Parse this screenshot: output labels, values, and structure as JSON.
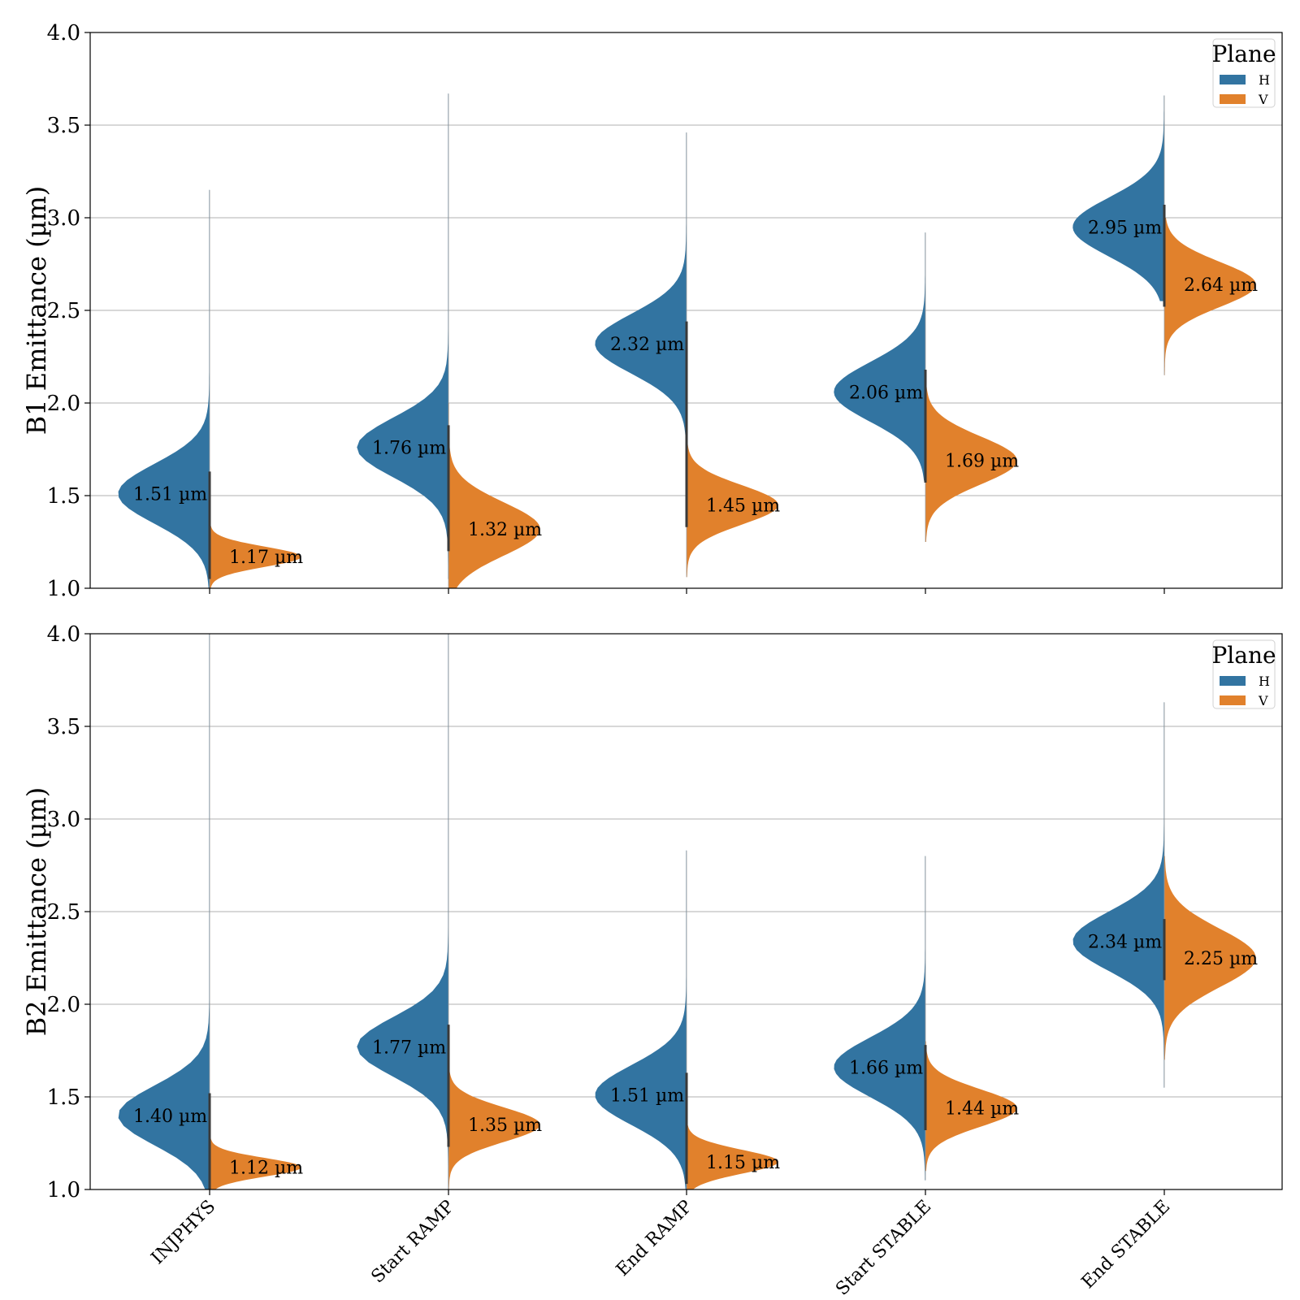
{
  "chart_data": [
    {
      "type": "violin",
      "ylabel": "B1 Emittance (µm)",
      "ylim": [
        1.0,
        4.0
      ],
      "yticks": [
        "1.0",
        "1.5",
        "2.0",
        "2.5",
        "3.0",
        "3.5",
        "4.0"
      ],
      "grid": "y",
      "legend": {
        "title": "Plane",
        "entries": [
          "H",
          "V"
        ],
        "placement": "top-right"
      },
      "categories": [
        "INJPHYS",
        "Start RAMP",
        "End RAMP",
        "Start STABLE",
        "End STABLE"
      ],
      "series": [
        {
          "name": "H",
          "color": "#3274a1",
          "medians": [
            1.51,
            1.76,
            2.32,
            2.06,
            2.95
          ],
          "labels": [
            "1.51 µm",
            "1.76 µm",
            "2.32 µm",
            "2.06 µm",
            "2.95 µm"
          ],
          "range": [
            [
              1.0,
              3.15
            ],
            [
              1.05,
              3.67
            ],
            [
              1.82,
              3.46
            ],
            [
              1.58,
              2.92
            ],
            [
              2.55,
              3.66
            ]
          ]
        },
        {
          "name": "V",
          "color": "#e1812c",
          "medians": [
            1.17,
            1.32,
            1.45,
            1.69,
            2.64
          ],
          "labels": [
            "1.17 µm",
            "1.32 µm",
            "1.45 µm",
            "1.69 µm",
            "2.64 µm"
          ],
          "range": [
            [
              1.0,
              1.38
            ],
            [
              1.0,
              2.0
            ],
            [
              1.06,
              1.8
            ],
            [
              1.25,
              2.15
            ],
            [
              2.15,
              3.0
            ]
          ]
        }
      ]
    },
    {
      "type": "violin",
      "ylabel": "B2 Emittance (µm)",
      "ylim": [
        1.0,
        4.0
      ],
      "yticks": [
        "1.0",
        "1.5",
        "2.0",
        "2.5",
        "3.0",
        "3.5",
        "4.0"
      ],
      "grid": "y",
      "legend": {
        "title": "Plane",
        "entries": [
          "H",
          "V"
        ],
        "placement": "top-right"
      },
      "categories": [
        "INJPHYS",
        "Start RAMP",
        "End RAMP",
        "Start STABLE",
        "End STABLE"
      ],
      "series": [
        {
          "name": "H",
          "color": "#3274a1",
          "medians": [
            1.4,
            1.77,
            1.51,
            1.66,
            2.34
          ],
          "labels": [
            "1.40 µm",
            "1.77 µm",
            "1.51 µm",
            "1.66 µm",
            "2.34 µm"
          ],
          "range": [
            [
              1.0,
              4.0
            ],
            [
              1.0,
              4.0
            ],
            [
              1.0,
              2.83
            ],
            [
              1.05,
              2.8
            ],
            [
              1.55,
              3.63
            ]
          ]
        },
        {
          "name": "V",
          "color": "#e1812c",
          "medians": [
            1.12,
            1.35,
            1.15,
            1.44,
            2.25
          ],
          "labels": [
            "1.12 µm",
            "1.35 µm",
            "1.15 µm",
            "1.44 µm",
            "2.25 µm"
          ],
          "range": [
            [
              1.0,
              1.32
            ],
            [
              1.0,
              1.65
            ],
            [
              1.0,
              1.45
            ],
            [
              1.1,
              1.8
            ],
            [
              1.7,
              2.8
            ]
          ]
        }
      ]
    }
  ]
}
